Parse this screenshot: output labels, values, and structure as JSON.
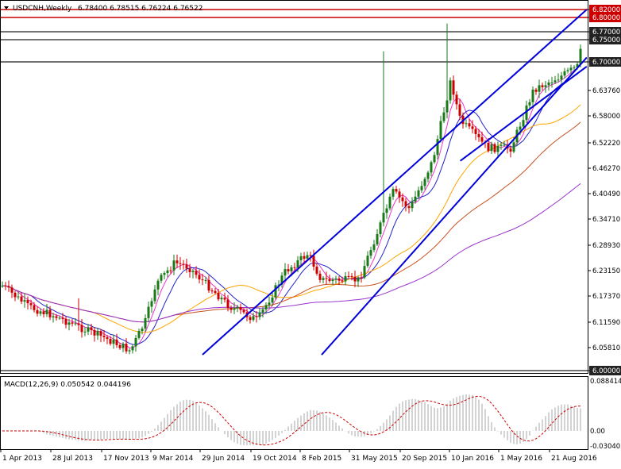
{
  "header": {
    "symbol": "USDCNH,Weekly",
    "ohlc": "6.78400 6.78515 6.76224 6.76522"
  },
  "colors": {
    "background": "#ffffff",
    "bull_candle": "#1a7a1a",
    "bear_candle": "#cc0000",
    "channel": "#0000dd",
    "level_red": "#cc0000",
    "level_dark": "#222222",
    "sma_blue": "#2222cc",
    "sma_pink": "#ee33cc",
    "sma_orange": "#ffa500",
    "sma_brown": "#c8501e",
    "sma_purple": "#9933cc",
    "macd_signal": "#cc0000",
    "macd_hist": "#c8c8c8"
  },
  "price_axis": {
    "ticks": [
      "6.82000",
      "6.80000",
      "6.77000",
      "6.75000",
      "6.70000",
      "6.63760",
      "6.58000",
      "6.52220",
      "6.46270",
      "6.40490",
      "6.34710",
      "6.28930",
      "6.23150",
      "6.17370",
      "6.11590",
      "6.05810",
      "6.00000"
    ],
    "highlighted": [
      {
        "label": "6.82000",
        "color": "#cc0000"
      },
      {
        "label": "6.80000",
        "color": "#cc0000"
      },
      {
        "label": "6.77000",
        "color": "#222222"
      },
      {
        "label": "6.75000",
        "color": "#222222"
      },
      {
        "label": "6.70000",
        "color": "#222222"
      },
      {
        "label": "6.00000",
        "color": "#222222"
      }
    ]
  },
  "date_axis": [
    "1 Apr 2013",
    "28 Jul 2013",
    "17 Nov 2013",
    "9 Mar 2014",
    "29 Jun 2014",
    "19 Oct 2014",
    "8 Feb 2015",
    "31 May 2015",
    "20 Sep 2015",
    "10 Jan 2016",
    "1 May 2016",
    "21 Aug 2016"
  ],
  "macd": {
    "label": "MACD(12,26,9) 0.050542 0.044196",
    "ticks": [
      "0.088414",
      "0.00",
      "-0.030405"
    ]
  },
  "chart_data": {
    "type": "candlestick",
    "symbol": "USDCNH",
    "timeframe": "Weekly",
    "x_range": [
      "2013-04-01",
      "2016-10-10"
    ],
    "ylim": [
      6.0,
      6.82
    ],
    "levels": [
      6.82,
      6.8,
      6.77,
      6.75,
      6.7
    ],
    "price_path": [
      {
        "date": "2013-04-01",
        "price": 6.2
      },
      {
        "date": "2013-06-01",
        "price": 6.15
      },
      {
        "date": "2013-07-28",
        "price": 6.13
      },
      {
        "date": "2013-10-01",
        "price": 6.1
      },
      {
        "date": "2013-11-17",
        "price": 6.08
      },
      {
        "date": "2014-01-12",
        "price": 6.05
      },
      {
        "date": "2014-02-15",
        "price": 6.12
      },
      {
        "date": "2014-03-09",
        "price": 6.2
      },
      {
        "date": "2014-04-20",
        "price": 6.25
      },
      {
        "date": "2014-05-20",
        "price": 6.24
      },
      {
        "date": "2014-06-29",
        "price": 6.2
      },
      {
        "date": "2014-08-20",
        "price": 6.15
      },
      {
        "date": "2014-10-19",
        "price": 6.12
      },
      {
        "date": "2014-12-20",
        "price": 6.23
      },
      {
        "date": "2015-02-08",
        "price": 6.27
      },
      {
        "date": "2015-03-10",
        "price": 6.21
      },
      {
        "date": "2015-05-31",
        "price": 6.21
      },
      {
        "date": "2015-08-15",
        "price": 6.41
      },
      {
        "date": "2015-09-20",
        "price": 6.37
      },
      {
        "date": "2015-11-10",
        "price": 6.48
      },
      {
        "date": "2015-12-20",
        "price": 6.66
      },
      {
        "date": "2016-01-10",
        "price": 6.57
      },
      {
        "date": "2016-03-10",
        "price": 6.51
      },
      {
        "date": "2016-05-01",
        "price": 6.51
      },
      {
        "date": "2016-06-20",
        "price": 6.64
      },
      {
        "date": "2016-08-21",
        "price": 6.67
      },
      {
        "date": "2016-09-25",
        "price": 6.69
      },
      {
        "date": "2016-10-10",
        "price": 6.77
      }
    ],
    "channels": [
      {
        "line": "upper",
        "from": {
          "date": "2014-06-20",
          "price": 6.04
        },
        "to": {
          "date": "2016-10-15",
          "price": 6.82
        }
      },
      {
        "line": "lower",
        "from": {
          "date": "2015-03-10",
          "price": 6.04
        },
        "to": {
          "date": "2016-10-15",
          "price": 6.71
        }
      },
      {
        "line": "support",
        "from": {
          "date": "2016-01-10",
          "price": 6.48
        },
        "to": {
          "date": "2016-10-15",
          "price": 6.69
        }
      }
    ]
  }
}
